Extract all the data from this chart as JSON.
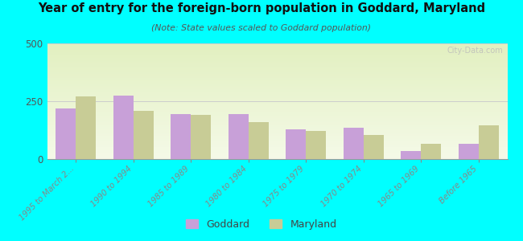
{
  "title": "Year of entry for the foreign-born population in Goddard, Maryland",
  "subtitle": "(Note: State values scaled to Goddard population)",
  "categories": [
    "1995 to March 2...",
    "1990 to 1994",
    "1985 to 1989",
    "1980 to 1984",
    "1975 to 1979",
    "1970 to 1974",
    "1965 to 1969",
    "Before 1965"
  ],
  "goddard_values": [
    220,
    275,
    195,
    195,
    130,
    135,
    35,
    65
  ],
  "maryland_values": [
    270,
    210,
    190,
    160,
    120,
    105,
    65,
    145
  ],
  "goddard_color": "#c8a0d8",
  "maryland_color": "#c8cc96",
  "bg_color": "#00ffff",
  "ylim": [
    0,
    500
  ],
  "yticks": [
    0,
    250,
    500
  ],
  "bar_width": 0.35,
  "watermark": "City-Data.com"
}
